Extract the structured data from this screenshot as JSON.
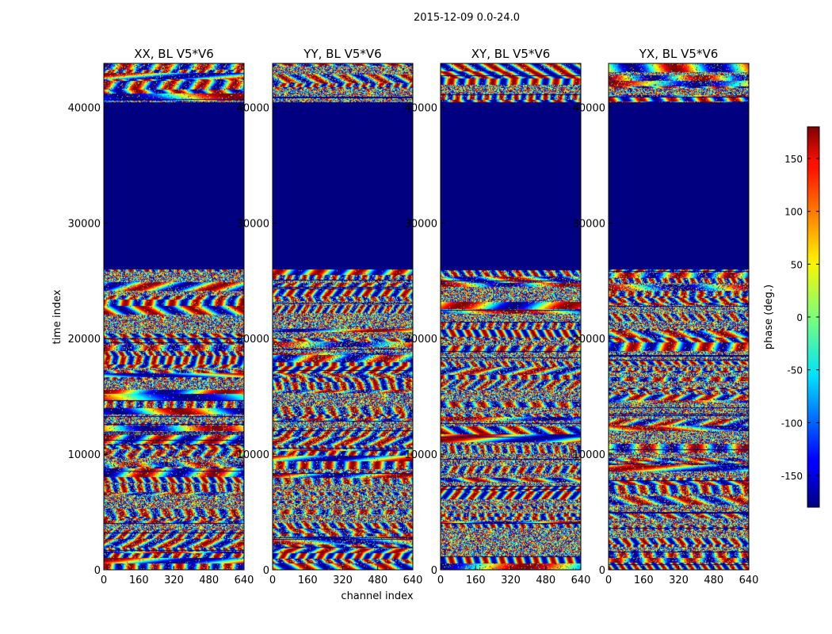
{
  "chart_data": {
    "type": "heatmap",
    "suptitle": "2015-12-09 0.0-24.0",
    "xlabel": "channel index",
    "ylabel": "time index",
    "xlim": [
      0,
      640
    ],
    "ylim": [
      0,
      43800
    ],
    "xticks": [
      0,
      160,
      320,
      480,
      640
    ],
    "yticks": [
      0,
      10000,
      20000,
      30000,
      40000
    ],
    "panels": [
      {
        "title": "XX, BL V5*V6"
      },
      {
        "title": "YY, BL V5*V6"
      },
      {
        "title": "XY, BL V5*V6"
      },
      {
        "title": "YX, BL V5*V6"
      }
    ],
    "flagged_region": {
      "y_from": 26000,
      "y_to": 40500,
      "value": -180
    },
    "colorbar": {
      "label": "phase (deg.)",
      "range": [
        -180,
        180
      ],
      "ticks": [
        -150,
        -100,
        -50,
        0,
        50,
        100,
        150
      ],
      "colormap": "jet"
    }
  }
}
